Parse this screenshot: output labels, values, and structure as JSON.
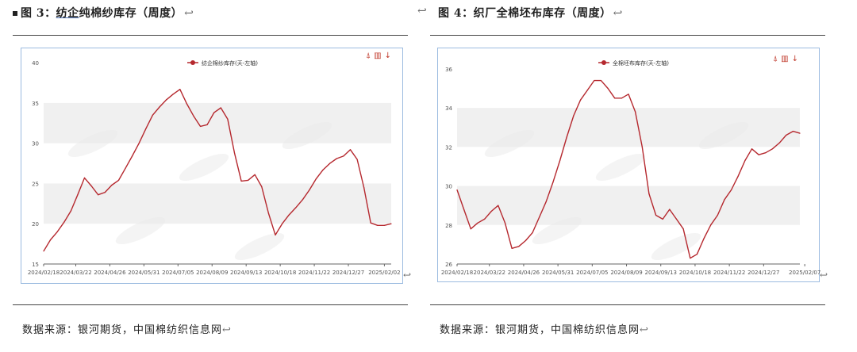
{
  "left": {
    "figure_title": "图 3：纺企纯棉纱库存（周度）",
    "title_prefix": "图 3：",
    "title_underlined": "纺企",
    "title_rest": "纯棉纱库存（周度）",
    "return_mark": "↩",
    "source": "数据来源：银河期货，中国棉纺织信息网",
    "tool_icons": {
      "line_icon": "⍋",
      "bar_icon": "▥",
      "download_icon": "↓"
    }
  },
  "right": {
    "figure_title": "图 4：织厂全棉坯布库存（周度）",
    "return_mark": "↩",
    "source": "数据来源：银河期货，中国棉纺织信息网",
    "tool_icons": {
      "line_icon": "⍋",
      "bar_icon": "▥",
      "download_icon": "↓"
    }
  },
  "colors": {
    "series": "#b5282e",
    "band": "#f0f0f0",
    "frame": "#9bbbe0",
    "axis": "#666666"
  },
  "chart_data": [
    {
      "type": "line",
      "legend_position": "top-center",
      "grid": "alternating-bands",
      "x_ticks": [
        "2024/02/18",
        "2024/03/22",
        "2024/04/26",
        "2024/05/31",
        "2024/07/05",
        "2024/08/09",
        "2024/09/13",
        "2024/10/18",
        "2024/11/22",
        "2024/12/27",
        "2025/02/02"
      ],
      "y_ticks": [
        15,
        20,
        25,
        30,
        35,
        40
      ],
      "ylim": [
        15,
        41
      ],
      "series": [
        {
          "name": "纺企棉纱库存(天-左轴)",
          "points": [
            [
              "2024/02/18",
              16.6
            ],
            [
              "2024/02/25",
              18.0
            ],
            [
              "2024/03/03",
              19.0
            ],
            [
              "2024/03/10",
              20.2
            ],
            [
              "2024/03/17",
              21.6
            ],
            [
              "2024/03/24",
              23.6
            ],
            [
              "2024/03/31",
              25.7
            ],
            [
              "2024/04/07",
              24.7
            ],
            [
              "2024/04/14",
              23.6
            ],
            [
              "2024/04/21",
              23.9
            ],
            [
              "2024/04/28",
              24.8
            ],
            [
              "2024/05/05",
              25.4
            ],
            [
              "2024/05/12",
              26.9
            ],
            [
              "2024/05/19",
              28.4
            ],
            [
              "2024/05/26",
              30.0
            ],
            [
              "2024/06/02",
              31.8
            ],
            [
              "2024/06/09",
              33.5
            ],
            [
              "2024/06/16",
              34.5
            ],
            [
              "2024/06/23",
              35.4
            ],
            [
              "2024/06/30",
              36.1
            ],
            [
              "2024/07/07",
              36.7
            ],
            [
              "2024/07/14",
              34.9
            ],
            [
              "2024/07/21",
              33.4
            ],
            [
              "2024/07/28",
              32.1
            ],
            [
              "2024/08/04",
              32.3
            ],
            [
              "2024/08/11",
              33.8
            ],
            [
              "2024/08/18",
              34.4
            ],
            [
              "2024/08/25",
              33.0
            ],
            [
              "2024/09/01",
              28.8
            ],
            [
              "2024/09/08",
              25.3
            ],
            [
              "2024/09/15",
              25.4
            ],
            [
              "2024/09/22",
              26.1
            ],
            [
              "2024/09/29",
              24.6
            ],
            [
              "2024/10/06",
              21.3
            ],
            [
              "2024/10/13",
              18.6
            ],
            [
              "2024/10/20",
              20.0
            ],
            [
              "2024/10/27",
              21.1
            ],
            [
              "2024/11/03",
              22.0
            ],
            [
              "2024/11/10",
              23.0
            ],
            [
              "2024/11/17",
              24.2
            ],
            [
              "2024/11/24",
              25.6
            ],
            [
              "2024/12/01",
              26.7
            ],
            [
              "2024/12/08",
              27.5
            ],
            [
              "2024/12/15",
              28.1
            ],
            [
              "2024/12/22",
              28.4
            ],
            [
              "2024/12/29",
              29.2
            ],
            [
              "2025/01/05",
              28.0
            ],
            [
              "2025/01/12",
              24.5
            ],
            [
              "2025/01/19",
              20.1
            ],
            [
              "2025/01/26",
              19.8
            ],
            [
              "2025/02/02",
              19.8
            ],
            [
              "2025/02/09",
              20.0
            ]
          ]
        }
      ]
    },
    {
      "type": "line",
      "legend_position": "top-center",
      "grid": "alternating-bands",
      "x_ticks": [
        "2024/02/18",
        "2024/03/22",
        "2024/04/26",
        "2024/05/31",
        "2024/07/05",
        "2024/08/09",
        "2024/09/13",
        "2024/10/18",
        "2024/11/22",
        "2024/12/27",
        "2025/02/07"
      ],
      "y_ticks": [
        26,
        28,
        30,
        32,
        34,
        36
      ],
      "ylim": [
        26,
        36.4
      ],
      "series": [
        {
          "name": "全棉坯布库存(天-左轴)",
          "points": [
            [
              "2024/02/18",
              29.8
            ],
            [
              "2024/02/25",
              28.8
            ],
            [
              "2024/03/03",
              27.8
            ],
            [
              "2024/03/10",
              28.1
            ],
            [
              "2024/03/17",
              28.3
            ],
            [
              "2024/03/24",
              28.7
            ],
            [
              "2024/03/31",
              29.0
            ],
            [
              "2024/04/07",
              28.1
            ],
            [
              "2024/04/14",
              26.8
            ],
            [
              "2024/04/21",
              26.9
            ],
            [
              "2024/04/28",
              27.2
            ],
            [
              "2024/05/05",
              27.6
            ],
            [
              "2024/05/12",
              28.4
            ],
            [
              "2024/05/19",
              29.2
            ],
            [
              "2024/05/26",
              30.2
            ],
            [
              "2024/06/02",
              31.3
            ],
            [
              "2024/06/09",
              32.5
            ],
            [
              "2024/06/16",
              33.6
            ],
            [
              "2024/06/23",
              34.4
            ],
            [
              "2024/06/30",
              34.9
            ],
            [
              "2024/07/07",
              35.4
            ],
            [
              "2024/07/14",
              35.4
            ],
            [
              "2024/07/21",
              35.0
            ],
            [
              "2024/07/28",
              34.5
            ],
            [
              "2024/08/04",
              34.5
            ],
            [
              "2024/08/11",
              34.7
            ],
            [
              "2024/08/18",
              33.8
            ],
            [
              "2024/08/25",
              32.0
            ],
            [
              "2024/09/01",
              29.6
            ],
            [
              "2024/09/08",
              28.5
            ],
            [
              "2024/09/15",
              28.3
            ],
            [
              "2024/09/22",
              28.8
            ],
            [
              "2024/09/29",
              28.3
            ],
            [
              "2024/10/06",
              27.8
            ],
            [
              "2024/10/13",
              26.3
            ],
            [
              "2024/10/20",
              26.5
            ],
            [
              "2024/10/27",
              27.3
            ],
            [
              "2024/11/03",
              28.0
            ],
            [
              "2024/11/10",
              28.5
            ],
            [
              "2024/11/17",
              29.3
            ],
            [
              "2024/11/24",
              29.8
            ],
            [
              "2024/12/01",
              30.5
            ],
            [
              "2024/12/08",
              31.3
            ],
            [
              "2024/12/15",
              31.9
            ],
            [
              "2024/12/22",
              31.6
            ],
            [
              "2024/12/29",
              31.7
            ],
            [
              "2025/01/05",
              31.9
            ],
            [
              "2025/01/12",
              32.2
            ],
            [
              "2025/01/19",
              32.6
            ],
            [
              "2025/01/26",
              32.8
            ],
            [
              "2025/02/02",
              32.7
            ]
          ]
        }
      ]
    }
  ]
}
